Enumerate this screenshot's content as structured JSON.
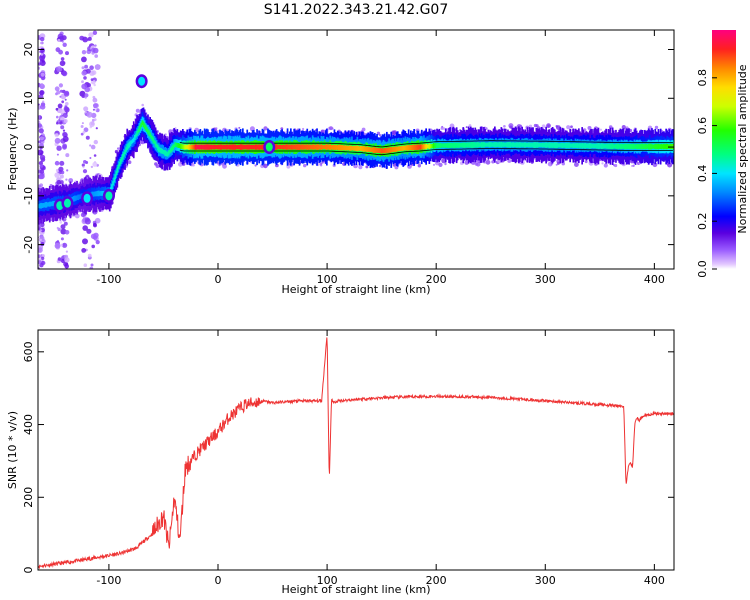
{
  "title": "S141.2022.343.21.42.G07",
  "chart_data": [
    {
      "type": "heatmap",
      "name": "spectrogram",
      "xlabel": "Height of straight line (km)",
      "ylabel": "Frequency (Hz)",
      "xlim": [
        -165,
        418
      ],
      "ylim": [
        -25,
        24
      ],
      "x_ticks": [
        -100,
        0,
        100,
        200,
        300,
        400
      ],
      "y_ticks": [
        -20,
        -10,
        0,
        10,
        20
      ],
      "colorbar": {
        "label": "Normalized spectral amplitude",
        "range": [
          0,
          1
        ],
        "ticks": [
          "0.0",
          "0.2",
          "0.4",
          "0.6",
          "0.8"
        ],
        "tick_values": [
          0,
          0.2,
          0.4,
          0.6,
          0.8
        ]
      },
      "ridge": [
        {
          "x": -150,
          "f": -11.5,
          "a": 0.35
        },
        {
          "x": -138,
          "f": -11.0,
          "a": 0.35
        },
        {
          "x": -125,
          "f": -10.0,
          "a": 0.3
        },
        {
          "x": -110,
          "f": -9.5,
          "a": 0.35
        },
        {
          "x": -100,
          "f": -9.5,
          "a": 0.4
        },
        {
          "x": -92,
          "f": -4.0,
          "a": 0.45
        },
        {
          "x": -84,
          "f": 0.0,
          "a": 0.45
        },
        {
          "x": -78,
          "f": 1.5,
          "a": 0.4
        },
        {
          "x": -70,
          "f": 5.0,
          "a": 0.55
        },
        {
          "x": -63,
          "f": 2.5,
          "a": 0.5
        },
        {
          "x": -55,
          "f": -0.5,
          "a": 0.45
        },
        {
          "x": -47,
          "f": -1.5,
          "a": 0.45
        },
        {
          "x": -40,
          "f": 0.5,
          "a": 0.5
        },
        {
          "x": -32,
          "f": 0.0,
          "a": 0.65
        },
        {
          "x": -20,
          "f": 0.0,
          "a": 0.95
        },
        {
          "x": 0,
          "f": 0.0,
          "a": 0.92
        },
        {
          "x": 30,
          "f": 0.0,
          "a": 0.92
        },
        {
          "x": 60,
          "f": 0.0,
          "a": 0.9
        },
        {
          "x": 100,
          "f": 0.0,
          "a": 0.85
        },
        {
          "x": 130,
          "f": -0.3,
          "a": 0.8
        },
        {
          "x": 150,
          "f": -0.8,
          "a": 0.88
        },
        {
          "x": 170,
          "f": -0.2,
          "a": 0.8
        },
        {
          "x": 185,
          "f": 0.0,
          "a": 0.9
        },
        {
          "x": 200,
          "f": 0.3,
          "a": 0.5
        },
        {
          "x": 250,
          "f": 0.5,
          "a": 0.45
        },
        {
          "x": 300,
          "f": 0.4,
          "a": 0.45
        },
        {
          "x": 350,
          "f": 0.2,
          "a": 0.45
        },
        {
          "x": 380,
          "f": 0.1,
          "a": 0.5
        },
        {
          "x": 418,
          "f": 0.1,
          "a": 0.6
        }
      ],
      "blobs": [
        {
          "x": -70,
          "f": 13.5,
          "a": 0.4
        },
        {
          "x": -145,
          "f": -12.0,
          "a": 0.45
        },
        {
          "x": -138,
          "f": -11.5,
          "a": 0.45
        },
        {
          "x": -120,
          "f": -10.5,
          "a": 0.4
        },
        {
          "x": -100,
          "f": -10.0,
          "a": 0.45
        },
        {
          "x": 47,
          "f": 0.0,
          "a": 0.5
        }
      ],
      "noise_bands": [
        {
          "x0": -165,
          "x1": -160,
          "f0": -25,
          "f1": 24
        },
        {
          "x0": -148,
          "x1": -138,
          "f0": -25,
          "f1": 24
        },
        {
          "x0": -125,
          "x1": -110,
          "f0": -25,
          "f1": 24
        }
      ]
    },
    {
      "type": "line",
      "name": "snr",
      "xlabel": "Height of straight line (km)",
      "ylabel": "SNR (10 * v/v)",
      "xlim": [
        -165,
        418
      ],
      "ylim": [
        0,
        660
      ],
      "x_ticks": [
        -100,
        0,
        100,
        200,
        300,
        400
      ],
      "y_ticks": [
        0,
        200,
        400,
        600
      ],
      "color": "#ee3333",
      "series": [
        {
          "x": [
            -165,
            -140,
            -110,
            -90,
            -75,
            -60,
            -50,
            -45,
            -40,
            -35,
            -30,
            -20,
            -10,
            0,
            10,
            25,
            40,
            50,
            75,
            95,
            100,
            102,
            104,
            106,
            110,
            130,
            160,
            200,
            250,
            300,
            350,
            372,
            374,
            376,
            378,
            380,
            382,
            384,
            386,
            390,
            400,
            418
          ],
          "y": [
            10,
            20,
            35,
            45,
            60,
            100,
            150,
            60,
            200,
            80,
            280,
            320,
            350,
            380,
            420,
            455,
            465,
            460,
            465,
            465,
            650,
            240,
            470,
            460,
            465,
            470,
            475,
            478,
            475,
            465,
            455,
            450,
            230,
            280,
            300,
            280,
            400,
            420,
            410,
            425,
            430,
            430
          ]
        }
      ]
    }
  ]
}
